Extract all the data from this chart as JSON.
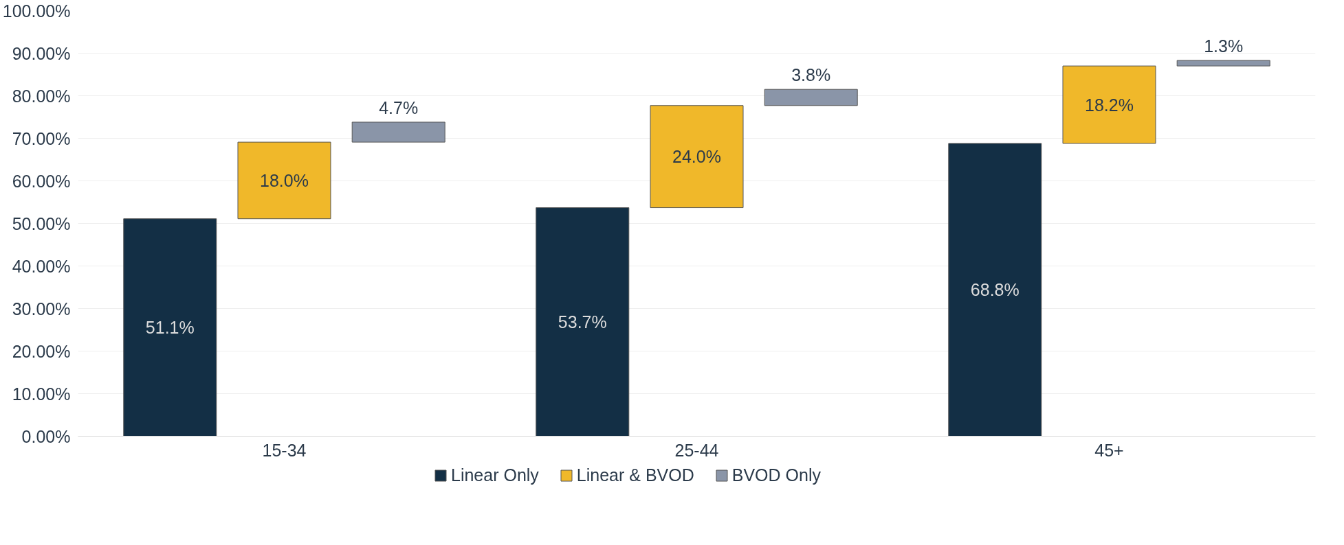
{
  "chart_data": {
    "type": "bar",
    "categories": [
      "15-34",
      "25-44",
      "45+"
    ],
    "series": [
      {
        "name": "Linear Only",
        "color": "#132f45",
        "values": [
          51.1,
          53.7,
          68.8
        ],
        "value_labels": [
          "51.1%",
          "53.7%",
          "68.8%"
        ],
        "base": [
          0,
          0,
          0
        ]
      },
      {
        "name": "Linear & BVOD",
        "color": "#f0b82a",
        "values": [
          18.0,
          24.0,
          18.2
        ],
        "value_labels": [
          "18.0%",
          "24.0%",
          "18.2%"
        ],
        "base": [
          51.1,
          53.7,
          68.8
        ]
      },
      {
        "name": "BVOD Only",
        "color": "#8a95a8",
        "values": [
          4.7,
          3.8,
          1.3
        ],
        "value_labels": [
          "4.7%",
          "3.8%",
          "1.3%"
        ],
        "base": [
          69.1,
          77.7,
          87.0
        ]
      }
    ],
    "ylim": [
      0,
      100
    ],
    "yticks": [
      {
        "value": 0,
        "label": "0.00%"
      },
      {
        "value": 10,
        "label": "10.00%"
      },
      {
        "value": 20,
        "label": "20.00%"
      },
      {
        "value": 30,
        "label": "30.00%"
      },
      {
        "value": 40,
        "label": "40.00%"
      },
      {
        "value": 50,
        "label": "50.00%"
      },
      {
        "value": 60,
        "label": "60.00%"
      },
      {
        "value": 70,
        "label": "70.00%"
      },
      {
        "value": 80,
        "label": "80.00%"
      },
      {
        "value": 90,
        "label": "90.00%"
      },
      {
        "value": 100,
        "label": "100.00%"
      }
    ],
    "grid": "y",
    "legend": "bottom"
  }
}
